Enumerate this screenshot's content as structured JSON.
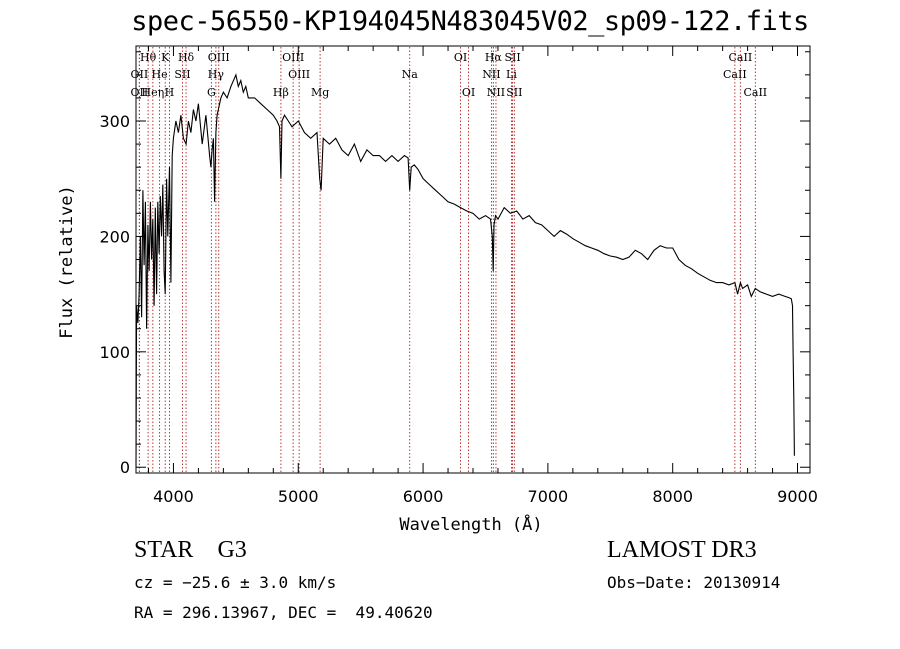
{
  "title": "spec-56550-KP194045N483045V02_sp09-122.fits",
  "info": {
    "object_type": "STAR",
    "subclass": "G3",
    "survey": "LAMOST DR3",
    "cz": "cz = −25.6 ± 3.0 km/s",
    "obs_date": "Obs−Date: 20130914",
    "radec": "RA = 296.13967, DEC =  49.40620"
  },
  "chart_data": {
    "type": "line",
    "title": "spec-56550-KP194045N483045V02_sp09-122.fits",
    "xlabel": "Wavelength (Å)",
    "ylabel": "Flux (relative)",
    "xlim": [
      3700,
      9100
    ],
    "ylim": [
      -5,
      365
    ],
    "x_ticks": [
      4000,
      5000,
      6000,
      7000,
      8000,
      9000
    ],
    "y_ticks": [
      0,
      100,
      200,
      300
    ],
    "x": [
      3700,
      3705,
      3715,
      3725,
      3735,
      3745,
      3755,
      3765,
      3775,
      3785,
      3795,
      3805,
      3815,
      3825,
      3835,
      3845,
      3855,
      3865,
      3875,
      3885,
      3895,
      3905,
      3915,
      3925,
      3934,
      3945,
      3955,
      3968,
      3980,
      3990,
      4000,
      4020,
      4040,
      4060,
      4080,
      4101,
      4120,
      4140,
      4160,
      4180,
      4200,
      4230,
      4260,
      4290,
      4300,
      4310,
      4320,
      4330,
      4340,
      4350,
      4380,
      4400,
      4430,
      4460,
      4500,
      4520,
      4540,
      4560,
      4580,
      4600,
      4650,
      4700,
      4750,
      4800,
      4830,
      4850,
      4861,
      4870,
      4890,
      4920,
      4950,
      5000,
      5050,
      5100,
      5150,
      5172,
      5183,
      5200,
      5250,
      5300,
      5350,
      5400,
      5450,
      5500,
      5550,
      5600,
      5650,
      5700,
      5750,
      5800,
      5850,
      5880,
      5893,
      5905,
      5930,
      5960,
      6000,
      6050,
      6100,
      6150,
      6200,
      6250,
      6300,
      6350,
      6400,
      6450,
      6500,
      6540,
      6555,
      6562,
      6568,
      6580,
      6600,
      6650,
      6700,
      6750,
      6800,
      6850,
      6900,
      6950,
      7000,
      7050,
      7100,
      7150,
      7200,
      7250,
      7300,
      7350,
      7400,
      7450,
      7500,
      7550,
      7600,
      7650,
      7700,
      7750,
      7800,
      7850,
      7900,
      7950,
      8000,
      8050,
      8100,
      8150,
      8200,
      8250,
      8300,
      8350,
      8400,
      8450,
      8498,
      8520,
      8542,
      8560,
      8600,
      8630,
      8662,
      8700,
      8750,
      8800,
      8850,
      8900,
      8930,
      8950,
      8960,
      8965,
      8970,
      8975
    ],
    "flux": [
      0,
      140,
      125,
      150,
      200,
      130,
      240,
      175,
      230,
      120,
      210,
      170,
      230,
      180,
      215,
      140,
      225,
      150,
      230,
      185,
      235,
      200,
      245,
      170,
      150,
      250,
      200,
      260,
      160,
      270,
      285,
      300,
      290,
      305,
      285,
      280,
      300,
      290,
      310,
      300,
      315,
      280,
      305,
      270,
      260,
      275,
      285,
      230,
      290,
      305,
      320,
      325,
      320,
      330,
      340,
      330,
      335,
      325,
      330,
      320,
      320,
      315,
      310,
      305,
      300,
      295,
      250,
      300,
      305,
      300,
      295,
      300,
      290,
      285,
      290,
      250,
      240,
      285,
      280,
      285,
      275,
      270,
      280,
      265,
      275,
      270,
      270,
      265,
      270,
      265,
      270,
      268,
      240,
      260,
      262,
      258,
      250,
      245,
      240,
      235,
      230,
      228,
      225,
      222,
      220,
      215,
      218,
      215,
      200,
      170,
      210,
      218,
      215,
      225,
      220,
      222,
      215,
      218,
      212,
      210,
      205,
      200,
      205,
      202,
      198,
      195,
      192,
      190,
      188,
      185,
      183,
      182,
      180,
      182,
      188,
      185,
      180,
      188,
      192,
      190,
      190,
      180,
      175,
      172,
      168,
      165,
      162,
      160,
      160,
      158,
      160,
      150,
      160,
      155,
      158,
      148,
      155,
      152,
      150,
      148,
      150,
      148,
      147,
      146,
      140,
      100,
      60,
      10
    ],
    "lines": [
      {
        "name": "Hθ",
        "wavelength": 3797,
        "row": 0
      },
      {
        "name": "OII",
        "wavelength": 3727,
        "row": 1
      },
      {
        "name": "OII",
        "wavelength": 3727,
        "row": 2
      },
      {
        "name": "Heη",
        "wavelength": 3835,
        "row": 2
      },
      {
        "name": "K",
        "wavelength": 3934,
        "row": 0
      },
      {
        "name": "He",
        "wavelength": 3889,
        "row": 1
      },
      {
        "name": "H",
        "wavelength": 3968,
        "row": 2
      },
      {
        "name": "Hδ",
        "wavelength": 4101,
        "row": 0
      },
      {
        "name": "SII",
        "wavelength": 4072,
        "row": 1
      },
      {
        "name": "OIII",
        "wavelength": 4363,
        "row": 0
      },
      {
        "name": "Hγ",
        "wavelength": 4340,
        "row": 1
      },
      {
        "name": "G",
        "wavelength": 4304,
        "row": 2
      },
      {
        "name": "Hβ",
        "wavelength": 4861,
        "row": 2
      },
      {
        "name": "OIII",
        "wavelength": 4959,
        "row": 0
      },
      {
        "name": "OIII",
        "wavelength": 5007,
        "row": 1
      },
      {
        "name": "Mg",
        "wavelength": 5175,
        "row": 2
      },
      {
        "name": "Na",
        "wavelength": 5893,
        "row": 1
      },
      {
        "name": "OI",
        "wavelength": 6300,
        "row": 0
      },
      {
        "name": "OI",
        "wavelength": 6364,
        "row": 2
      },
      {
        "name": "Hα",
        "wavelength": 6563,
        "row": 0
      },
      {
        "name": "NII",
        "wavelength": 6548,
        "row": 1
      },
      {
        "name": "NII",
        "wavelength": 6584,
        "row": 2
      },
      {
        "name": "SII",
        "wavelength": 6717,
        "row": 0
      },
      {
        "name": "Li",
        "wavelength": 6708,
        "row": 1
      },
      {
        "name": "SII",
        "wavelength": 6731,
        "row": 2
      },
      {
        "name": "CaII",
        "wavelength": 8542,
        "row": 0
      },
      {
        "name": "CaII",
        "wavelength": 8498,
        "row": 1
      },
      {
        "name": "CaII",
        "wavelength": 8662,
        "row": 2
      }
    ]
  }
}
